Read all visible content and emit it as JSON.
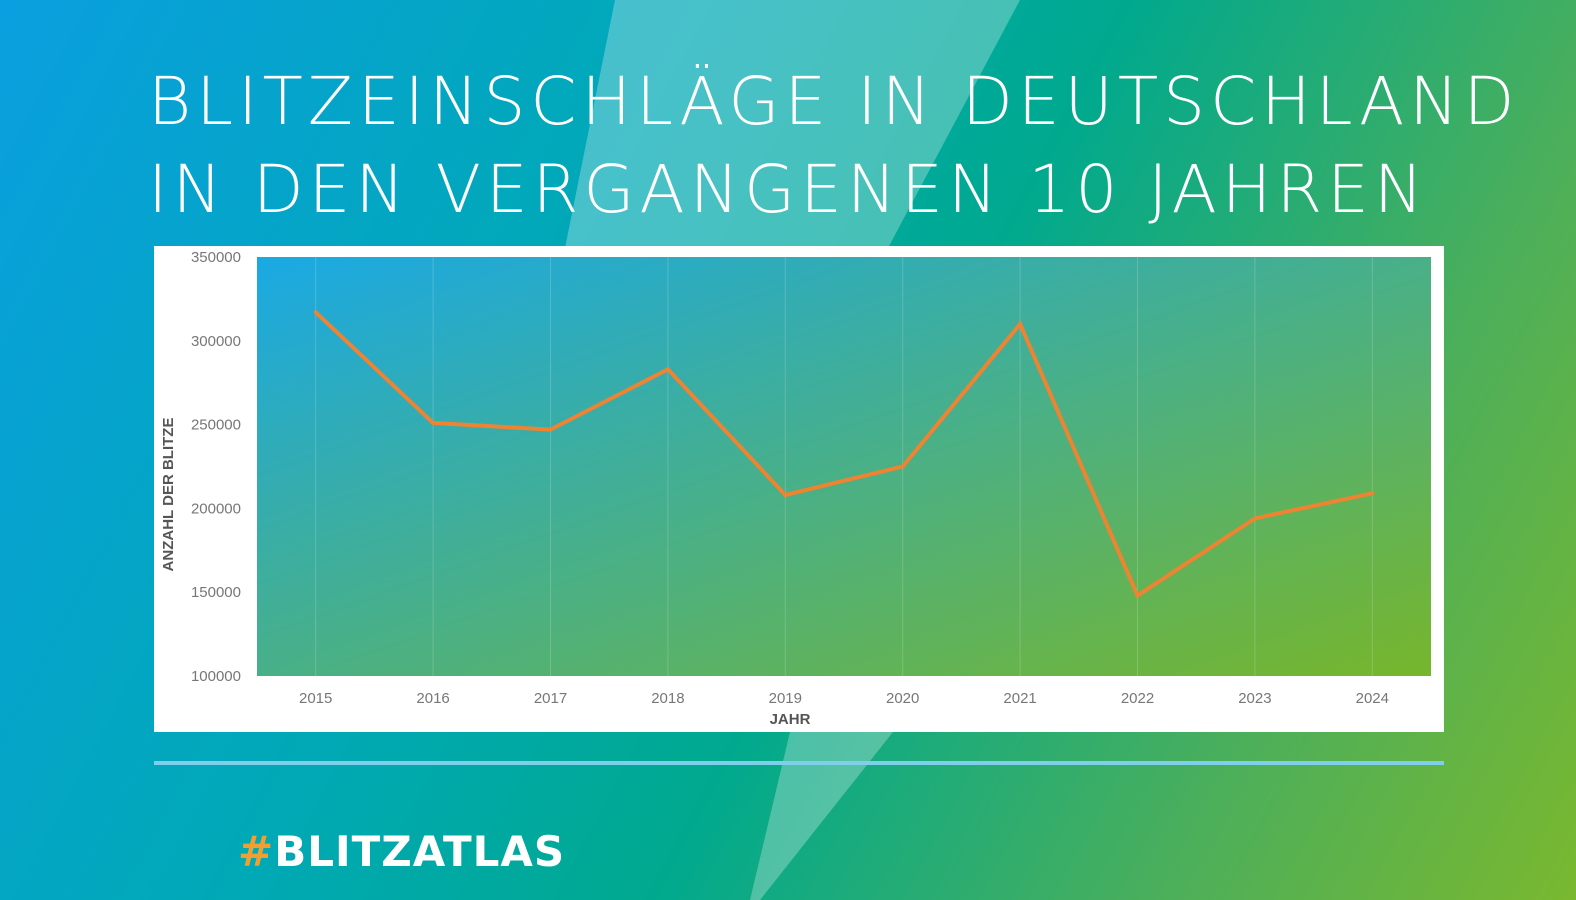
{
  "title": {
    "line1": "BLITZEINSCHLÄGE IN DEUTSCHLAND",
    "line2": "IN DEN VERGANGENEN 10 JAHREN"
  },
  "hashtag": {
    "symbol": "#",
    "text": "BLITZATLAS"
  },
  "colors": {
    "line": "#ee8431",
    "plot_start": "#1aa9e4",
    "plot_end": "#77b62c",
    "tick_text": "#777777",
    "axis_title": "#555555",
    "divider": "#7fcfea",
    "hash": "#f0a033"
  },
  "chart_data": {
    "type": "line",
    "x": [
      "2015",
      "2016",
      "2017",
      "2018",
      "2019",
      "2020",
      "2021",
      "2022",
      "2023",
      "2024"
    ],
    "series": [
      {
        "values": [
          317000,
          251000,
          247000,
          283000,
          208000,
          225000,
          310000,
          148000,
          194000,
          209000
        ]
      }
    ],
    "xlabel": "JAHR",
    "ylabel": "ANZAHL DER BLITZE",
    "ylim": [
      100000,
      350000
    ],
    "yticks": [
      "100000",
      "150000",
      "200000",
      "250000",
      "300000",
      "350000"
    ],
    "grid": "vertical"
  }
}
